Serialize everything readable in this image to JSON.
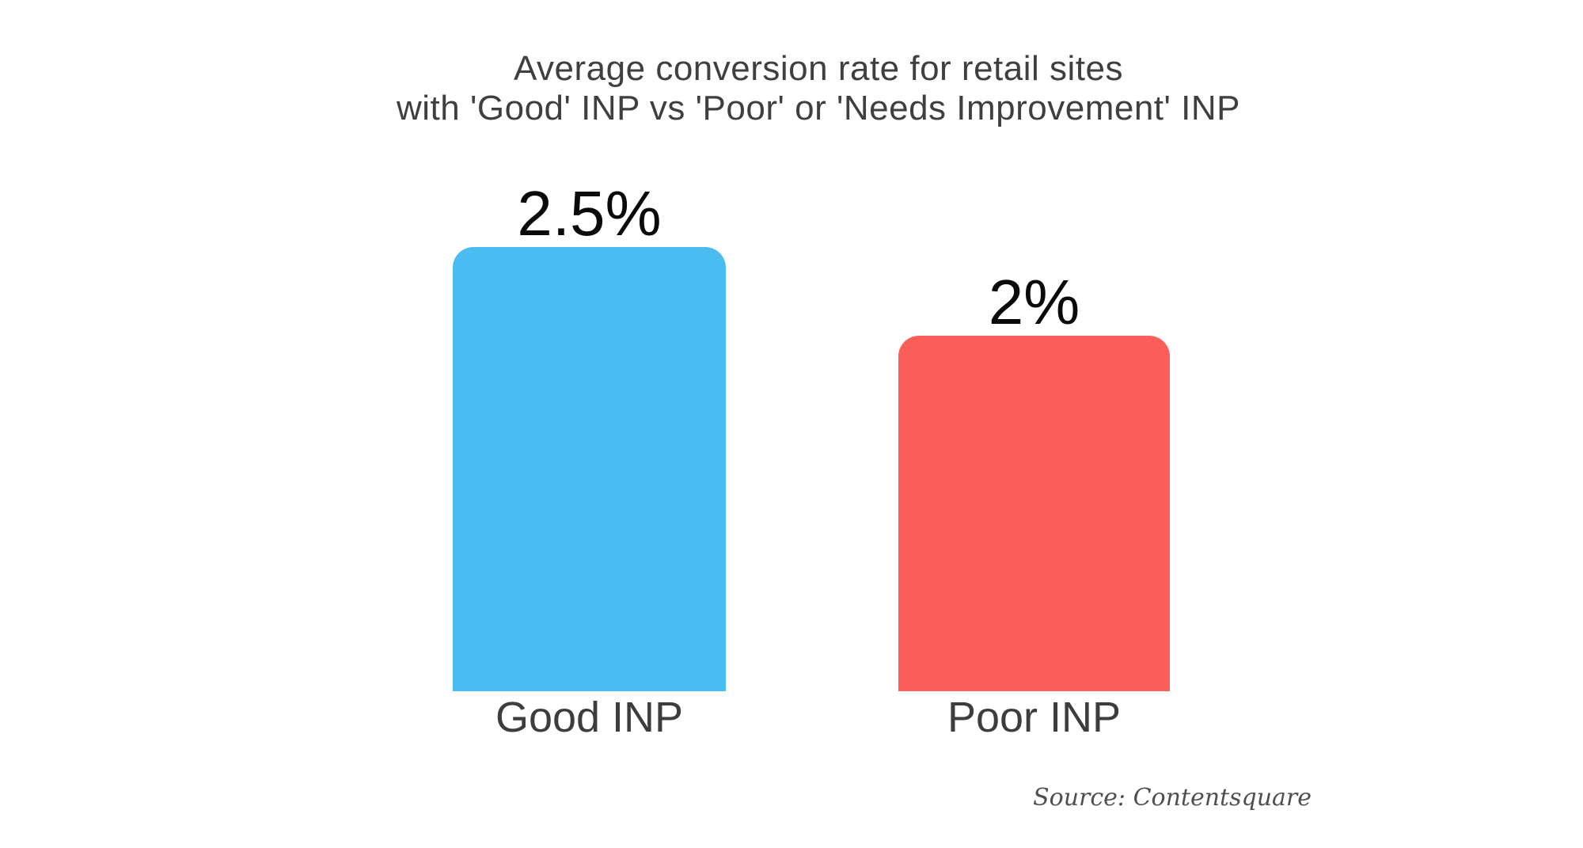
{
  "chart_data": {
    "type": "bar",
    "title": "Average conversion rate for retail sites with 'Good' INP vs 'Poor' or 'Needs Improvement' INP",
    "title_lines": [
      "Average conversion rate for retail sites",
      "with 'Good' INP vs 'Poor' or 'Needs Improvement' INP"
    ],
    "categories": [
      "Good INP",
      "Poor INP"
    ],
    "values": [
      2.5,
      2
    ],
    "value_labels": [
      "2.5%",
      "2%"
    ],
    "bar_colors": [
      "#4ABCF2",
      "#FB5F59"
    ],
    "ylabel": "",
    "xlabel": "",
    "ylim": [
      0,
      2.5
    ],
    "grid": false,
    "legend": "none",
    "axes_shown": false,
    "source_note": "Source: Contentsquare",
    "colors": {
      "background": "#ffffff",
      "title_text": "#3f3f3f",
      "value_label_text": "#0a0a0a",
      "category_label_text": "#3d3d3d",
      "source_text": "#4f4f4f"
    }
  }
}
